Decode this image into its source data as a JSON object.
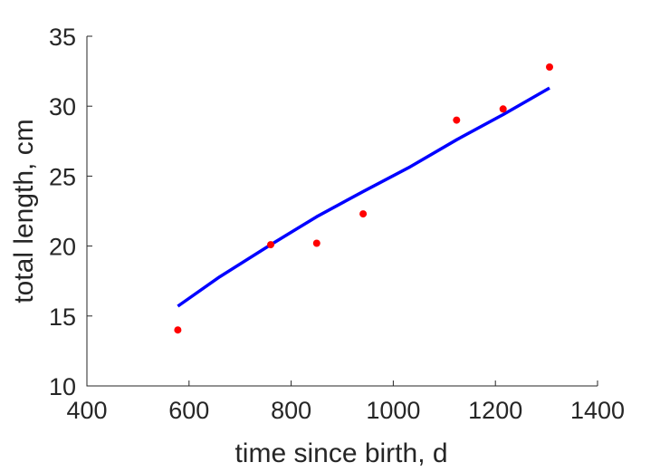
{
  "chart_data": {
    "type": "scatter",
    "xlabel": "time since birth, d",
    "ylabel": "total length, cm",
    "xlim": [
      400,
      1400
    ],
    "ylim": [
      10,
      35
    ],
    "xticks": [
      400,
      600,
      800,
      1000,
      1200,
      1400
    ],
    "yticks": [
      10,
      15,
      20,
      25,
      30,
      35
    ],
    "grid": false,
    "series": [
      {
        "kind": "scatter",
        "color": "#ff0000",
        "x": [
          578,
          760,
          850,
          941,
          1124,
          1215,
          1306
        ],
        "y": [
          14.0,
          20.1,
          20.2,
          22.3,
          29.0,
          29.8,
          32.8
        ]
      },
      {
        "kind": "line",
        "color": "#0000ff",
        "x": [
          578,
          660,
          760,
          850,
          941,
          1030,
          1124,
          1215,
          1306
        ],
        "y": [
          15.7,
          17.8,
          20.1,
          22.1,
          23.9,
          25.6,
          27.6,
          29.4,
          31.3
        ]
      }
    ]
  }
}
